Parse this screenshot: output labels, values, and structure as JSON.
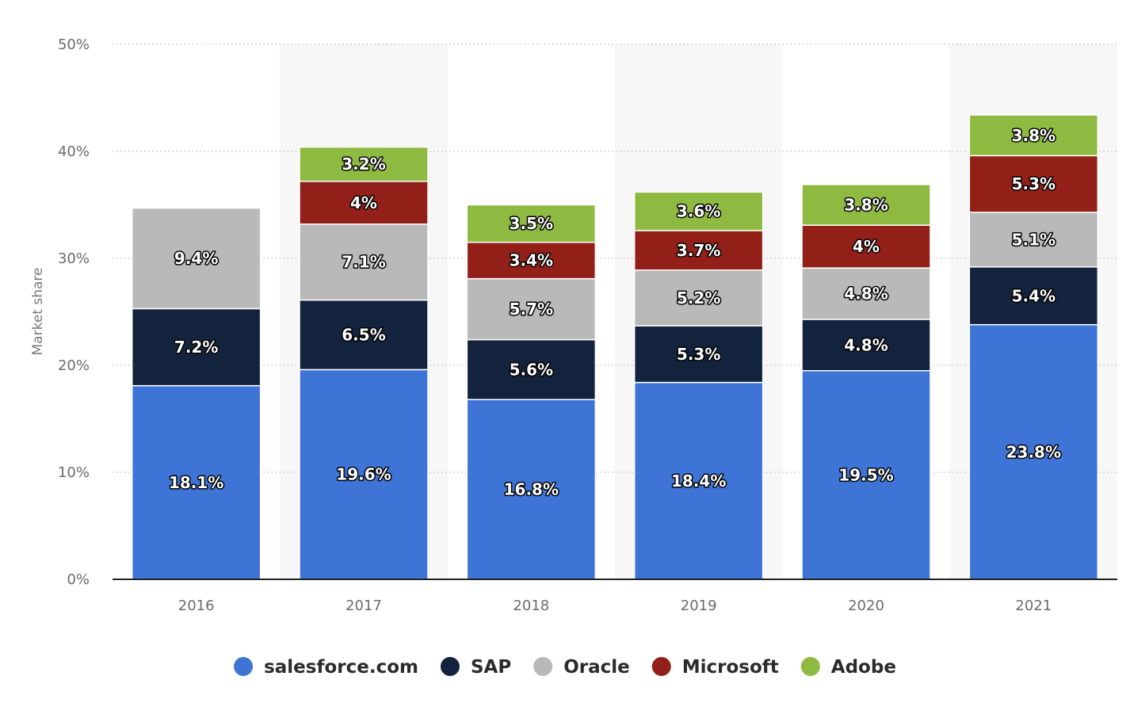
{
  "chart_data": {
    "type": "bar",
    "stacked": true,
    "ylabel": "Market share",
    "xlabel": "",
    "ylim": [
      0,
      50
    ],
    "y_ticks": [
      "0%",
      "10%",
      "20%",
      "30%",
      "40%",
      "50%"
    ],
    "y_tick_values": [
      0,
      10,
      20,
      30,
      40,
      50
    ],
    "grid": true,
    "legend_position": "bottom",
    "categories": [
      "2016",
      "2017",
      "2018",
      "2019",
      "2020",
      "2021"
    ],
    "series": [
      {
        "name": "salesforce.com",
        "color": "#3d74d6",
        "values": [
          18.1,
          19.6,
          16.8,
          18.4,
          19.5,
          23.8
        ],
        "labels": [
          "18.1%",
          "19.6%",
          "16.8%",
          "18.4%",
          "19.5%",
          "23.8%"
        ]
      },
      {
        "name": "SAP",
        "color": "#13233d",
        "values": [
          7.2,
          6.5,
          5.6,
          5.3,
          4.8,
          5.4
        ],
        "labels": [
          "7.2%",
          "6.5%",
          "5.6%",
          "5.3%",
          "4.8%",
          "5.4%"
        ]
      },
      {
        "name": "Oracle",
        "color": "#b9b9b9",
        "values": [
          9.4,
          7.1,
          5.7,
          5.2,
          4.8,
          5.1
        ],
        "labels": [
          "9.4%",
          "7.1%",
          "5.7%",
          "5.2%",
          "4.8%",
          "5.1%"
        ]
      },
      {
        "name": "Microsoft",
        "color": "#922019",
        "values": [
          null,
          4,
          3.4,
          3.7,
          4,
          5.3
        ],
        "labels": [
          "",
          "4%",
          "3.4%",
          "3.7%",
          "4%",
          "5.3%"
        ]
      },
      {
        "name": "Adobe",
        "color": "#8fba42",
        "values": [
          null,
          3.2,
          3.5,
          3.6,
          3.8,
          3.8
        ],
        "labels": [
          "",
          "3.2%",
          "3.5%",
          "3.6%",
          "3.8%",
          "3.8%"
        ]
      }
    ]
  }
}
